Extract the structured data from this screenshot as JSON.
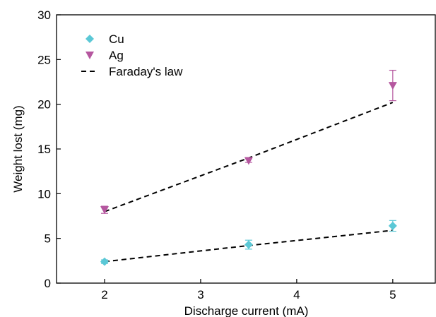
{
  "chart_data": {
    "type": "scatter",
    "xlabel": "Discharge current (mA)",
    "ylabel": "Weight lost (mg)",
    "xlim": [
      1.5,
      5.45
    ],
    "ylim": [
      0,
      30
    ],
    "xticks": [
      2,
      3,
      4,
      5
    ],
    "yticks": [
      0,
      5,
      10,
      15,
      20,
      25,
      30
    ],
    "x_tick_labels": [
      "2",
      "3",
      "4",
      "5"
    ],
    "y_tick_labels": [
      "0",
      "5",
      "10",
      "15",
      "20",
      "25",
      "30"
    ],
    "grid": false,
    "legend_position": "top-left",
    "series": [
      {
        "name": "Cu",
        "kind": "points",
        "marker": "diamond",
        "color": "#5bc8d6",
        "x": [
          2,
          3.5,
          5
        ],
        "y": [
          2.4,
          4.3,
          6.4
        ],
        "err": [
          0.2,
          0.5,
          0.6
        ]
      },
      {
        "name": "Ag",
        "kind": "points",
        "marker": "triangle-down",
        "color": "#b5579f",
        "x": [
          2,
          3.5,
          5
        ],
        "y": [
          8.2,
          13.7,
          22.1
        ],
        "err": [
          0.4,
          0.2,
          1.7
        ]
      }
    ],
    "fit_lines": [
      {
        "name": "Faraday's law",
        "style": "dashed",
        "color": "#000000",
        "x": [
          2,
          3.5,
          5
        ],
        "y": [
          2.4,
          4.2,
          5.9
        ]
      },
      {
        "name": "Faraday's law",
        "style": "dashed",
        "color": "#000000",
        "x": [
          2,
          3.5,
          5
        ],
        "y": [
          8.0,
          14.0,
          20.2
        ]
      }
    ],
    "legend": [
      {
        "label": "Cu",
        "symbol": "diamond",
        "color": "#5bc8d6"
      },
      {
        "label": "Ag",
        "symbol": "triangle-down",
        "color": "#b5579f"
      },
      {
        "label": "Faraday's law",
        "symbol": "dash",
        "color": "#000000"
      }
    ]
  }
}
